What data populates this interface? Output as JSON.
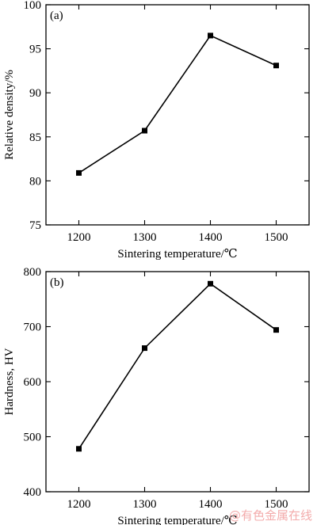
{
  "chart_data": [
    {
      "type": "line",
      "panel_label": "(a)",
      "xlabel": "Sintering temperature/℃",
      "ylabel": "Relative density/%",
      "x": [
        1200,
        1300,
        1400,
        1500
      ],
      "y": [
        80.9,
        85.7,
        96.5,
        93.1
      ],
      "xlim": [
        1150,
        1550
      ],
      "ylim": [
        75,
        100
      ],
      "xticks": [
        1200,
        1300,
        1400,
        1500
      ],
      "yticks": [
        75,
        80,
        85,
        90,
        95,
        100
      ],
      "marker": "square",
      "color": "#000000",
      "grid": false
    },
    {
      "type": "line",
      "panel_label": "(b)",
      "xlabel": "Sintering temperature/℃",
      "ylabel": "Hardness, HV",
      "x": [
        1200,
        1300,
        1400,
        1500
      ],
      "y": [
        478,
        661,
        778,
        694
      ],
      "xlim": [
        1150,
        1550
      ],
      "ylim": [
        400,
        800
      ],
      "xticks": [
        1200,
        1300,
        1400,
        1500
      ],
      "yticks": [
        400,
        500,
        600,
        700,
        800
      ],
      "marker": "square",
      "color": "#000000",
      "grid": false
    }
  ],
  "watermark": "@有色金属在线"
}
